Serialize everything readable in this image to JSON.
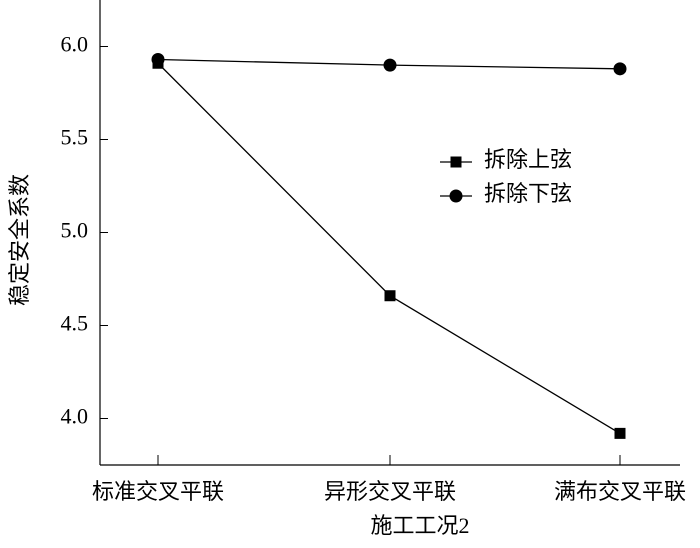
{
  "chart_data": {
    "type": "line",
    "xlabel": "施工工况2",
    "ylabel": "稳定安全系数",
    "categories": [
      "标准交叉平联",
      "异形交叉平联",
      "满布交叉平联"
    ],
    "series": [
      {
        "name": "拆除上弦",
        "color": "#000000",
        "marker": "square",
        "values": [
          5.91,
          4.66,
          3.92
        ]
      },
      {
        "name": "拆除下弦",
        "color": "#000000",
        "marker": "circle",
        "values": [
          5.93,
          5.9,
          5.88
        ]
      }
    ],
    "ylim": [
      3.75,
      6.25
    ],
    "yticks": [
      {
        "value": 4.0,
        "label": "4.0"
      },
      {
        "value": 4.5,
        "label": "4.5"
      },
      {
        "value": 5.0,
        "label": "5.0"
      },
      {
        "value": 5.5,
        "label": "5.5"
      },
      {
        "value": 6.0,
        "label": "6.0"
      }
    ]
  }
}
